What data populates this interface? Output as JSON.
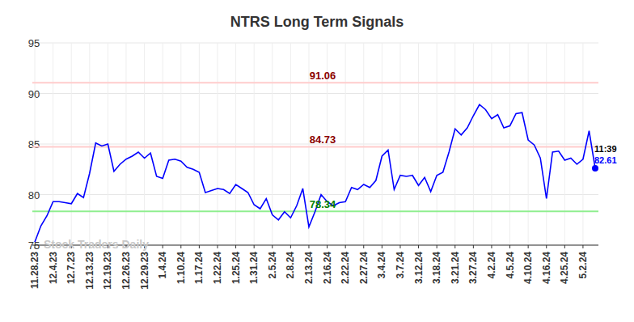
{
  "chart_data": {
    "type": "line",
    "title": "NTRS Long Term Signals",
    "watermark": "Stock Traders Daily",
    "categories": [
      "11.28.23",
      null,
      null,
      "12.4.23",
      null,
      null,
      "12.7.23",
      null,
      null,
      "12.13.23",
      null,
      null,
      "12.19.23",
      null,
      null,
      "12.26.23",
      null,
      null,
      "12.29.23",
      null,
      null,
      "1.4.24",
      null,
      null,
      "1.10.24",
      null,
      null,
      "1.17.24",
      null,
      null,
      "1.22.24",
      null,
      null,
      "1.25.24",
      null,
      null,
      "1.31.24",
      null,
      null,
      "2.5.24",
      null,
      null,
      "2.8.24",
      null,
      null,
      "2.13.24",
      null,
      null,
      "2.16.24",
      null,
      null,
      "2.22.24",
      null,
      null,
      "2.27.24",
      null,
      null,
      "3.4.24",
      null,
      null,
      "3.7.24",
      null,
      null,
      "3.12.24",
      null,
      null,
      "3.18.24",
      null,
      null,
      "3.21.24",
      null,
      null,
      "3.27.24",
      null,
      null,
      "4.2.24",
      null,
      null,
      "4.5.24",
      null,
      null,
      "4.10.24",
      null,
      null,
      "4.16.24",
      null,
      null,
      "4.25.24",
      null,
      null,
      "5.2.24",
      null,
      null
    ],
    "values": [
      75.3,
      76.9,
      77.9,
      79.3,
      79.3,
      79.2,
      79.1,
      80.1,
      79.7,
      82.1,
      85.1,
      84.8,
      85.0,
      82.3,
      83.0,
      83.5,
      83.8,
      84.2,
      83.6,
      84.1,
      81.8,
      81.6,
      83.4,
      83.5,
      83.3,
      82.7,
      82.5,
      82.2,
      80.2,
      80.4,
      80.6,
      80.5,
      80.1,
      81.0,
      80.6,
      80.2,
      79.0,
      78.6,
      79.6,
      78.0,
      77.5,
      78.3,
      77.7,
      78.9,
      80.6,
      76.8,
      78.3,
      80.0,
      79.3,
      78.9,
      79.2,
      79.3,
      80.7,
      80.5,
      81.0,
      80.7,
      81.4,
      83.8,
      84.4,
      80.5,
      81.9,
      81.8,
      81.9,
      80.9,
      81.7,
      80.3,
      81.9,
      82.2,
      84.2,
      86.5,
      85.9,
      86.6,
      87.8,
      88.9,
      88.4,
      87.5,
      87.9,
      86.6,
      86.8,
      88.0,
      88.1,
      85.4,
      84.9,
      83.6,
      79.6,
      84.2,
      84.3,
      83.4,
      83.6,
      83.0,
      83.5,
      86.3,
      82.61
    ],
    "color": "#0000ff",
    "reference_lines": [
      {
        "value": 91.06,
        "color": "#ffcccc"
      },
      {
        "value": 84.73,
        "color": "#ffcccc"
      },
      {
        "value": 78.34,
        "color": "#90ee90"
      }
    ],
    "annotations": [
      {
        "text": "11:39"
      }
    ],
    "ylim": [
      75,
      95
    ],
    "yticks": [
      75,
      80,
      85,
      90,
      95
    ],
    "grid": true
  }
}
